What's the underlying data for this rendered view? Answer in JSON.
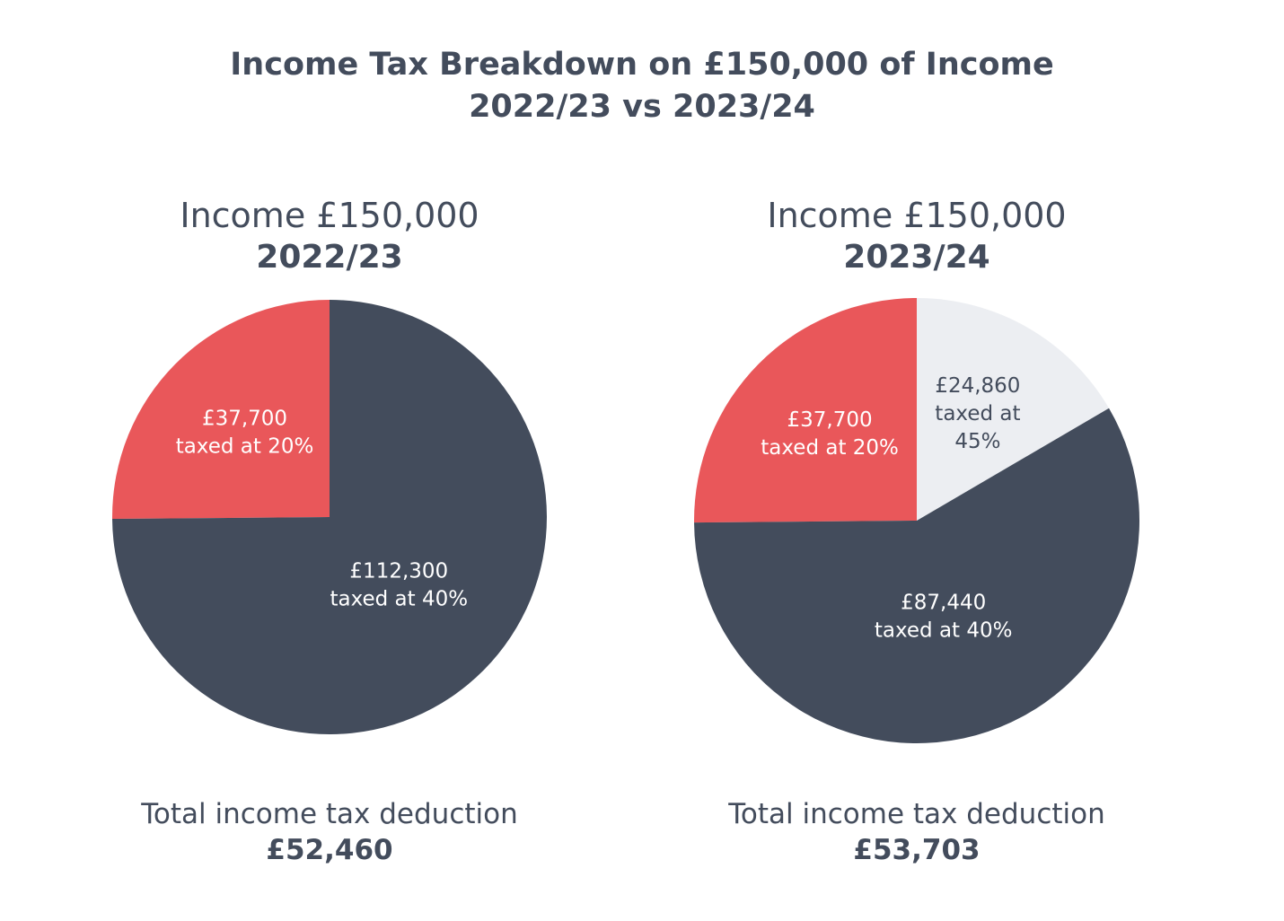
{
  "chart_data": [
    {
      "type": "pie",
      "title": "Income £150,000",
      "subtitle": "2022/23",
      "slices": [
        {
          "label_amount": "£37,700",
          "label_rate": "taxed at 20%",
          "value": 37700,
          "color": "#e9575a",
          "text_color": "#ffffff"
        },
        {
          "label_amount": "£112,300",
          "label_rate": "taxed at 40%",
          "value": 112300,
          "color": "#434c5c",
          "text_color": "#ffffff"
        }
      ],
      "total_label": "Total income tax deduction",
      "total_value": "£52,460"
    },
    {
      "type": "pie",
      "title": "Income £150,000",
      "subtitle": "2023/24",
      "slices": [
        {
          "label_amount": "£37,700",
          "label_rate": "taxed at 20%",
          "value": 37700,
          "color": "#e9575a",
          "text_color": "#ffffff"
        },
        {
          "label_amount": "£24,860",
          "label_rate": "taxed at",
          "label_rate_2": "45%",
          "value": 24860,
          "color": "#eceef2",
          "text_color": "#434c5c"
        },
        {
          "label_amount": "£87,440",
          "label_rate": "taxed at 40%",
          "value": 87440,
          "color": "#434c5c",
          "text_color": "#ffffff"
        }
      ],
      "total_label": "Total income tax deduction",
      "total_value": "£53,703"
    }
  ],
  "header": {
    "title_line1": "Income Tax Breakdown on £150,000 of Income",
    "title_line2": "2022/23 vs 2023/24"
  },
  "colors": {
    "text": "#434c5c",
    "basic_rate": "#e9575a",
    "higher_rate": "#434c5c",
    "additional_rate": "#eceef2"
  }
}
